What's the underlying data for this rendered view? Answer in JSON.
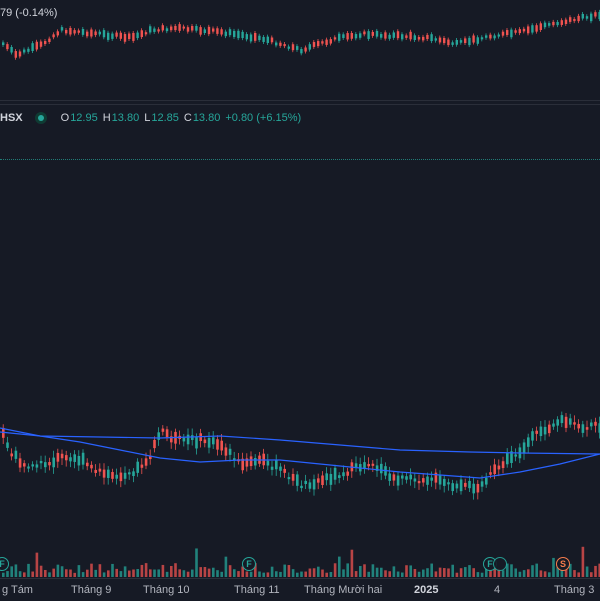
{
  "top_legend": {
    "text": "79 (-0.14%)"
  },
  "main_legend": {
    "symbol": "HSX",
    "open_label": "O",
    "open": "12.95",
    "high_label": "H",
    "high": "13.80",
    "low_label": "L",
    "low": "12.85",
    "close_label": "C",
    "close": "13.80",
    "change": "+0.80 (+6.15%)"
  },
  "time_axis": {
    "labels": [
      "g Tám",
      "Tháng 9",
      "Tháng 10",
      "Tháng 11",
      "Tháng Mười hai",
      "2025",
      "4",
      "Tháng 3"
    ]
  },
  "events": [
    {
      "type": "F",
      "label": "F"
    },
    {
      "type": "F",
      "label": "F"
    },
    {
      "type": "F",
      "label": "F"
    },
    {
      "type": "S",
      "label": "S"
    }
  ],
  "colors": {
    "up": "#26a69a",
    "down": "#ef5350",
    "ma": "#2962ff",
    "bg": "#161a25"
  }
}
